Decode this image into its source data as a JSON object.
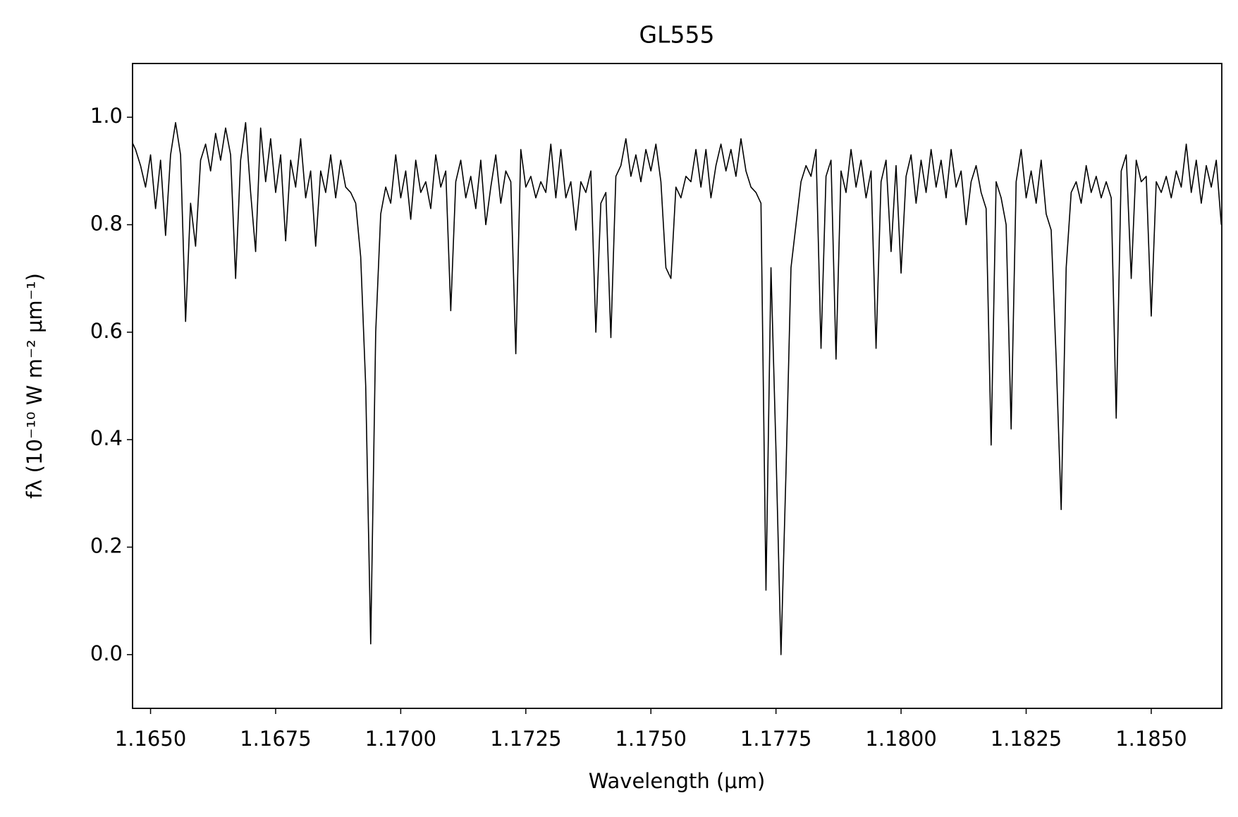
{
  "chart_data": {
    "type": "line",
    "title": "GL555",
    "xlabel": "Wavelength (μm)",
    "ylabel": "fλ (10⁻¹⁰ W m⁻² μm⁻¹)",
    "color": "#000000",
    "xlim": [
      1.16464,
      1.18641
    ],
    "ylim": [
      -0.1,
      1.1
    ],
    "xticks": [
      {
        "value": 1.165,
        "label": "1.1650"
      },
      {
        "value": 1.1675,
        "label": "1.1675"
      },
      {
        "value": 1.17,
        "label": "1.1700"
      },
      {
        "value": 1.1725,
        "label": "1.1725"
      },
      {
        "value": 1.175,
        "label": "1.1750"
      },
      {
        "value": 1.1775,
        "label": "1.1775"
      },
      {
        "value": 1.18,
        "label": "1.1800"
      },
      {
        "value": 1.1825,
        "label": "1.1825"
      },
      {
        "value": 1.185,
        "label": "1.1850"
      }
    ],
    "yticks": [
      {
        "value": 0,
        "label": "0.0"
      },
      0.2,
      0.4,
      0.6,
      0.8,
      {
        "value": 1,
        "label": "1.0"
      }
    ],
    "grid": false,
    "x": [
      1.1646,
      1.1647,
      1.1648,
      1.1649,
      1.165,
      1.1651,
      1.1652,
      1.1653,
      1.1654,
      1.1655,
      1.1656,
      1.1657,
      1.1658,
      1.1659,
      1.166,
      1.1661,
      1.1662,
      1.1663,
      1.1664,
      1.1665,
      1.1666,
      1.1667,
      1.1668,
      1.1669,
      1.167,
      1.1671,
      1.1672,
      1.1673,
      1.1674,
      1.1675,
      1.1676,
      1.1677,
      1.1678,
      1.1679,
      1.168,
      1.1681,
      1.1682,
      1.1683,
      1.1684,
      1.1685,
      1.1686,
      1.1687,
      1.1688,
      1.1689,
      1.169,
      1.1691,
      1.1692,
      1.1693,
      1.1694,
      1.1695,
      1.1696,
      1.1697,
      1.1698,
      1.1699,
      1.17,
      1.1701,
      1.1702,
      1.1703,
      1.1704,
      1.1705,
      1.1706,
      1.1707,
      1.1708,
      1.1709,
      1.171,
      1.1711,
      1.1712,
      1.1713,
      1.1714,
      1.1715,
      1.1716,
      1.1717,
      1.1718,
      1.1719,
      1.172,
      1.1721,
      1.1722,
      1.1723,
      1.1724,
      1.1725,
      1.1726,
      1.1727,
      1.1728,
      1.1729,
      1.173,
      1.1731,
      1.1732,
      1.1733,
      1.1734,
      1.1735,
      1.1736,
      1.1737,
      1.1738,
      1.1739,
      1.174,
      1.1741,
      1.1742,
      1.1743,
      1.1744,
      1.1745,
      1.1746,
      1.1747,
      1.1748,
      1.1749,
      1.175,
      1.1751,
      1.1752,
      1.1753,
      1.1754,
      1.1755,
      1.1756,
      1.1757,
      1.1758,
      1.1759,
      1.176,
      1.1761,
      1.1762,
      1.1763,
      1.1764,
      1.1765,
      1.1766,
      1.1767,
      1.1768,
      1.1769,
      1.177,
      1.1771,
      1.1772,
      1.1773,
      1.1774,
      1.1775,
      1.1776,
      1.1777,
      1.1778,
      1.1779,
      1.178,
      1.1781,
      1.1782,
      1.1783,
      1.1784,
      1.1785,
      1.1786,
      1.1787,
      1.1788,
      1.1789,
      1.179,
      1.1791,
      1.1792,
      1.1793,
      1.1794,
      1.1795,
      1.1796,
      1.1797,
      1.1798,
      1.1799,
      1.18,
      1.1801,
      1.1802,
      1.1803,
      1.1804,
      1.1805,
      1.1806,
      1.1807,
      1.1808,
      1.1809,
      1.181,
      1.1811,
      1.1812,
      1.1813,
      1.1814,
      1.1815,
      1.1816,
      1.1817,
      1.1818,
      1.1819,
      1.182,
      1.1821,
      1.1822,
      1.1823,
      1.1824,
      1.1825,
      1.1826,
      1.1827,
      1.1828,
      1.1829,
      1.183,
      1.1831,
      1.1832,
      1.1833,
      1.1834,
      1.1835,
      1.1836,
      1.1837,
      1.1838,
      1.1839,
      1.184,
      1.1841,
      1.1842,
      1.1843,
      1.1844,
      1.1845,
      1.1846,
      1.1847,
      1.1848,
      1.1849,
      1.185,
      1.1851,
      1.1852,
      1.1853,
      1.1854,
      1.1855,
      1.1856,
      1.1857,
      1.1858,
      1.1859,
      1.186,
      1.1861,
      1.1862,
      1.1863,
      1.1864
    ],
    "values": [
      0.96,
      0.94,
      0.91,
      0.87,
      0.93,
      0.83,
      0.92,
      0.78,
      0.93,
      0.99,
      0.93,
      0.62,
      0.84,
      0.76,
      0.92,
      0.95,
      0.9,
      0.97,
      0.92,
      0.98,
      0.93,
      0.7,
      0.92,
      0.99,
      0.86,
      0.75,
      0.98,
      0.88,
      0.96,
      0.86,
      0.93,
      0.77,
      0.92,
      0.87,
      0.96,
      0.85,
      0.9,
      0.76,
      0.9,
      0.86,
      0.93,
      0.85,
      0.92,
      0.87,
      0.86,
      0.84,
      0.74,
      0.5,
      0.02,
      0.6,
      0.82,
      0.87,
      0.84,
      0.93,
      0.85,
      0.9,
      0.81,
      0.92,
      0.86,
      0.88,
      0.83,
      0.93,
      0.87,
      0.9,
      0.64,
      0.88,
      0.92,
      0.85,
      0.89,
      0.83,
      0.92,
      0.8,
      0.87,
      0.93,
      0.84,
      0.9,
      0.88,
      0.56,
      0.94,
      0.87,
      0.89,
      0.85,
      0.88,
      0.86,
      0.95,
      0.85,
      0.94,
      0.85,
      0.88,
      0.79,
      0.88,
      0.86,
      0.9,
      0.6,
      0.84,
      0.86,
      0.59,
      0.89,
      0.91,
      0.96,
      0.89,
      0.93,
      0.88,
      0.94,
      0.9,
      0.95,
      0.88,
      0.72,
      0.7,
      0.87,
      0.85,
      0.89,
      0.88,
      0.94,
      0.87,
      0.94,
      0.85,
      0.91,
      0.95,
      0.9,
      0.94,
      0.89,
      0.96,
      0.9,
      0.87,
      0.86,
      0.84,
      0.12,
      0.72,
      0.38,
      0.0,
      0.34,
      0.72,
      0.8,
      0.88,
      0.91,
      0.89,
      0.94,
      0.57,
      0.89,
      0.92,
      0.55,
      0.9,
      0.86,
      0.94,
      0.87,
      0.92,
      0.85,
      0.9,
      0.57,
      0.88,
      0.92,
      0.75,
      0.91,
      0.71,
      0.89,
      0.93,
      0.84,
      0.92,
      0.86,
      0.94,
      0.87,
      0.92,
      0.85,
      0.94,
      0.87,
      0.9,
      0.8,
      0.88,
      0.91,
      0.86,
      0.83,
      0.39,
      0.88,
      0.85,
      0.8,
      0.42,
      0.88,
      0.94,
      0.85,
      0.9,
      0.84,
      0.92,
      0.82,
      0.79,
      0.55,
      0.27,
      0.72,
      0.86,
      0.88,
      0.84,
      0.91,
      0.86,
      0.89,
      0.85,
      0.88,
      0.85,
      0.44,
      0.9,
      0.93,
      0.7,
      0.92,
      0.88,
      0.89,
      0.63,
      0.88,
      0.86,
      0.89,
      0.85,
      0.9,
      0.87,
      0.95,
      0.86,
      0.92,
      0.84,
      0.91,
      0.87,
      0.92,
      0.8
    ]
  }
}
